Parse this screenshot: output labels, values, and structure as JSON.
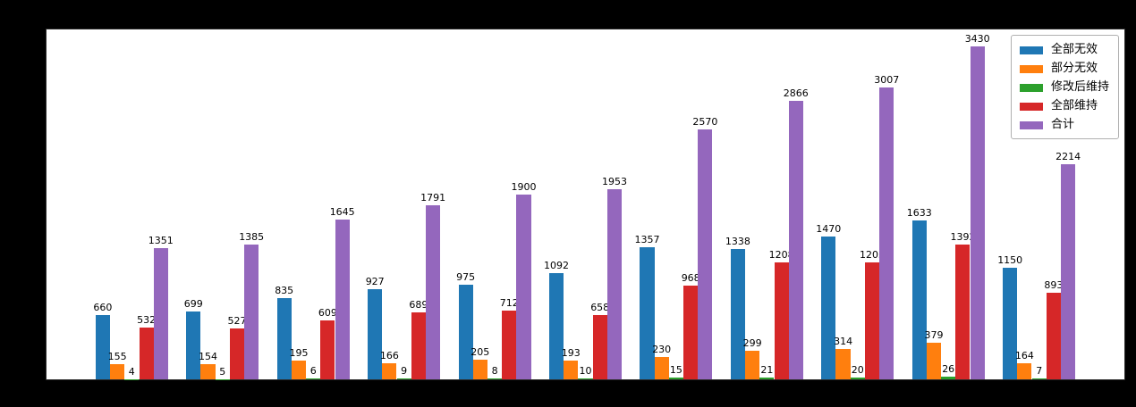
{
  "figure": {
    "background_color": "#000000",
    "plot_background_color": "#ffffff"
  },
  "legend": {
    "items": [
      {
        "label": "全部无效",
        "color": "#1f77b4"
      },
      {
        "label": "部分无效",
        "color": "#ff7f0e"
      },
      {
        "label": "修改后维持",
        "color": "#2ca02c"
      },
      {
        "label": "全部维持",
        "color": "#d62728"
      },
      {
        "label": "合计",
        "color": "#9467bd"
      }
    ]
  },
  "chart_data": {
    "type": "bar",
    "grouped": true,
    "n_groups": 11,
    "x_tick_labels_visible": false,
    "y_tick_labels_visible": false,
    "bar_value_labels": true,
    "ylim": [
      0,
      3601
    ],
    "legend_position": "upper right",
    "grid": false,
    "series": [
      {
        "name": "全部无效",
        "color": "#1f77b4",
        "values": [
          660,
          699,
          835,
          927,
          975,
          1092,
          1357,
          1338,
          1470,
          1633,
          1150
        ]
      },
      {
        "name": "部分无效",
        "color": "#ff7f0e",
        "values": [
          155,
          154,
          195,
          166,
          205,
          193,
          230,
          299,
          314,
          379,
          164
        ]
      },
      {
        "name": "修改后维持",
        "color": "#2ca02c",
        "values": [
          4,
          5,
          6,
          9,
          8,
          10,
          15,
          21,
          20,
          26,
          7
        ]
      },
      {
        "name": "全部维持",
        "color": "#d62728",
        "values": [
          532,
          527,
          609,
          689,
          712,
          658,
          968,
          1208,
          1203,
          1392,
          893
        ]
      },
      {
        "name": "合计",
        "color": "#9467bd",
        "values": [
          1351,
          1385,
          1645,
          1791,
          1900,
          1953,
          2570,
          2866,
          3007,
          3430,
          2214
        ]
      }
    ]
  }
}
